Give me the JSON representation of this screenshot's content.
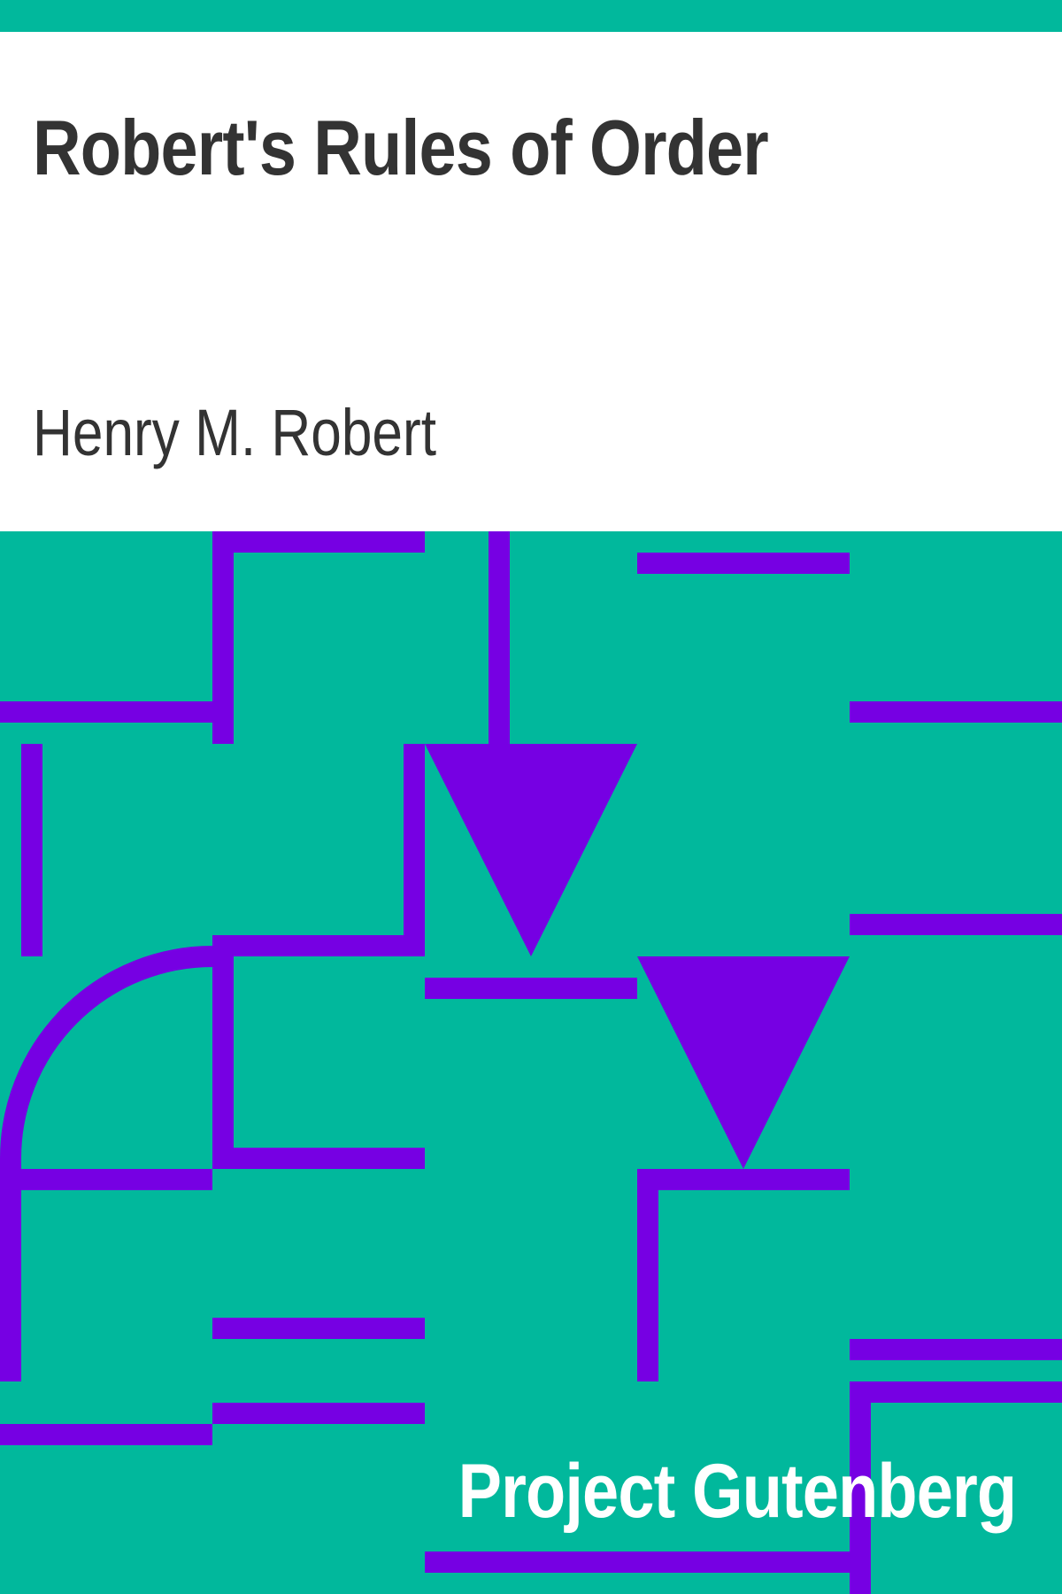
{
  "cover": {
    "title": "Robert's Rules of Order",
    "author": "Henry M. Robert",
    "publisher": "Project Gutenberg"
  },
  "colors": {
    "background": "#01b89c",
    "panel": "#ffffff",
    "text": "#333333",
    "pattern": "#7600e3",
    "publisher_text": "#ffffff"
  }
}
